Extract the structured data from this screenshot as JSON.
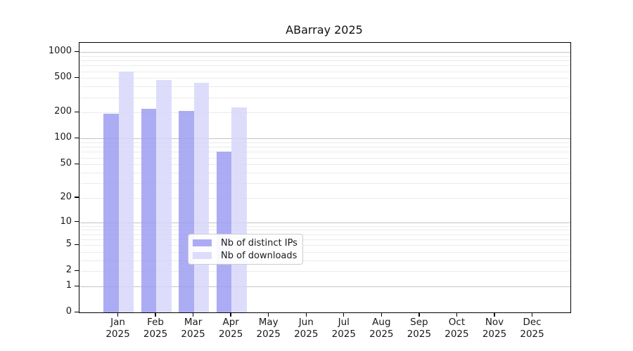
{
  "chart_data": {
    "type": "bar",
    "title": "ABarray 2025",
    "year": "2025",
    "categories": [
      "Jan",
      "Feb",
      "Mar",
      "Apr",
      "May",
      "Jun",
      "Jul",
      "Aug",
      "Sep",
      "Oct",
      "Nov",
      "Dec"
    ],
    "series": [
      {
        "name": "Nb of distinct IPs",
        "color": "#9d9df2",
        "values": [
          195,
          220,
          210,
          70,
          0,
          0,
          0,
          0,
          0,
          0,
          0,
          0
        ]
      },
      {
        "name": "Nb of downloads",
        "color": "#d7d7fa",
        "values": [
          600,
          480,
          440,
          230,
          0,
          0,
          0,
          0,
          0,
          0,
          0,
          0
        ]
      }
    ],
    "yscale": "log10(value+1)",
    "yticks": [
      0,
      1,
      2,
      5,
      10,
      20,
      50,
      100,
      200,
      500,
      1000
    ],
    "ylim": [
      0,
      1280
    ],
    "grid_major": [
      1,
      10,
      100,
      1000
    ],
    "grid_minor": [
      2,
      3,
      4,
      5,
      6,
      7,
      8,
      9,
      20,
      30,
      40,
      50,
      60,
      70,
      80,
      90,
      200,
      300,
      400,
      500,
      600,
      700,
      800,
      900
    ],
    "legend_position": "inside-bottom-center",
    "colors": {
      "axis": "#000000",
      "grid_major": "#c3c3c3",
      "grid_minor": "#ebebeb",
      "text": "#1a1a1a"
    }
  }
}
